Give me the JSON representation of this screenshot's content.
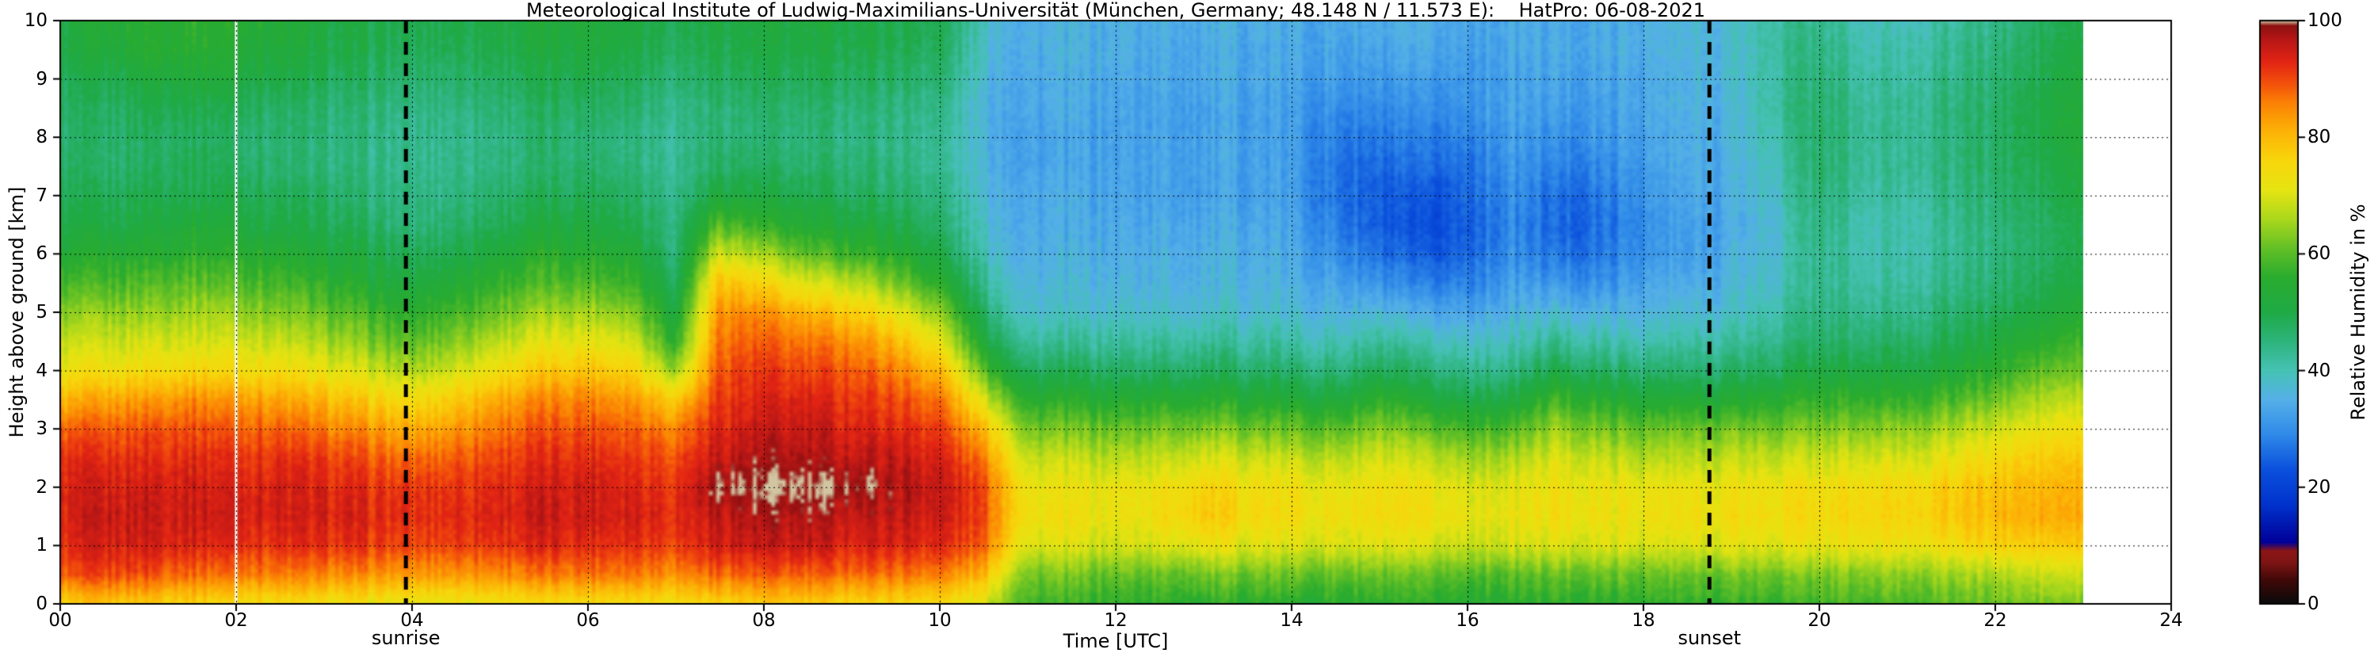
{
  "chart_data": {
    "type": "heatmap",
    "title": "Meteorological Institute of Ludwig-Maximilians-Universität (München, Germany; 48.148 N / 11.573 E):    HatPro: 06-08-2021",
    "xlabel": "Time [UTC]",
    "ylabel": "Height above ground [km]",
    "colorbar_label": "Relative Humidity in %",
    "x_range": [
      0,
      24
    ],
    "y_range": [
      0,
      10
    ],
    "c_range": [
      0,
      100
    ],
    "grid": "dashed-black-at-major-ticks",
    "x_ticks": {
      "values": [
        0,
        2,
        4,
        6,
        8,
        10,
        12,
        14,
        16,
        18,
        20,
        22,
        24
      ],
      "labels": [
        "00",
        "02",
        "04",
        "06",
        "08",
        "10",
        "12",
        "14",
        "16",
        "18",
        "20",
        "22",
        "24"
      ]
    },
    "y_ticks": {
      "values": [
        0,
        1,
        2,
        3,
        4,
        5,
        6,
        7,
        8,
        9,
        10
      ],
      "labels": [
        "0",
        "1",
        "2",
        "3",
        "4",
        "5",
        "6",
        "7",
        "8",
        "9",
        "10"
      ]
    },
    "colorbar_ticks": {
      "values": [
        0,
        20,
        40,
        60,
        80,
        100
      ],
      "labels": [
        "0",
        "20",
        "40",
        "60",
        "80",
        "100"
      ]
    },
    "annotations": {
      "sunrise": {
        "label": "sunrise",
        "time_utc": 3.93
      },
      "sunset": {
        "label": "sunset",
        "time_utc": 18.75
      }
    },
    "data_gap_times_utc": [
      2.0
    ],
    "data_time_extent_utc": [
      0,
      23
    ],
    "times_utc": [
      0,
      0.5,
      1,
      1.5,
      2,
      2.5,
      3,
      3.5,
      4,
      4.5,
      5,
      5.5,
      6,
      6.5,
      7,
      7.5,
      8,
      8.5,
      9,
      9.5,
      10,
      10.5,
      11,
      11.5,
      12,
      12.5,
      13,
      13.5,
      14,
      14.5,
      15,
      15.5,
      16,
      16.5,
      17,
      17.5,
      18,
      18.5,
      19,
      19.5,
      20,
      20.5,
      21,
      21.5,
      22,
      22.5,
      23
    ],
    "heights_km": [
      0,
      0.5,
      1,
      1.5,
      2,
      2.5,
      3,
      3.5,
      4,
      4.5,
      5,
      5.5,
      6,
      6.5,
      7,
      7.5,
      8,
      8.5,
      9,
      9.5,
      10
    ],
    "humidity_percent_by_time": [
      [
        75,
        88,
        92,
        93,
        93,
        92,
        88,
        80,
        72,
        68,
        63,
        58,
        53,
        50,
        48,
        47,
        46,
        47,
        48,
        50,
        50
      ],
      [
        78,
        90,
        94,
        95,
        94,
        92,
        88,
        82,
        73,
        68,
        64,
        58,
        54,
        50,
        48,
        46,
        46,
        47,
        49,
        52,
        53
      ],
      [
        78,
        90,
        95,
        96,
        95,
        93,
        90,
        84,
        75,
        70,
        65,
        60,
        55,
        52,
        50,
        48,
        48,
        50,
        52,
        55,
        55
      ],
      [
        76,
        88,
        94,
        95,
        95,
        93,
        90,
        85,
        76,
        70,
        66,
        61,
        56,
        53,
        50,
        49,
        48,
        50,
        53,
        55,
        56
      ],
      [
        75,
        87,
        93,
        95,
        94,
        92,
        89,
        84,
        75,
        70,
        65,
        60,
        56,
        52,
        50,
        48,
        47,
        49,
        52,
        54,
        55
      ],
      [
        74,
        86,
        92,
        94,
        94,
        92,
        88,
        82,
        74,
        68,
        63,
        58,
        54,
        50,
        48,
        46,
        46,
        47,
        50,
        52,
        53
      ],
      [
        73,
        85,
        92,
        94,
        93,
        91,
        86,
        80,
        72,
        66,
        61,
        56,
        52,
        49,
        47,
        45,
        45,
        46,
        48,
        50,
        51
      ],
      [
        72,
        84,
        91,
        93,
        92,
        89,
        84,
        77,
        69,
        63,
        58,
        53,
        50,
        47,
        45,
        44,
        44,
        45,
        47,
        49,
        50
      ],
      [
        71,
        83,
        90,
        92,
        91,
        87,
        81,
        74,
        66,
        60,
        55,
        51,
        48,
        45,
        44,
        43,
        43,
        44,
        46,
        48,
        49
      ],
      [
        72,
        84,
        91,
        93,
        92,
        89,
        84,
        78,
        70,
        64,
        59,
        54,
        50,
        47,
        45,
        44,
        44,
        45,
        47,
        49,
        50
      ],
      [
        73,
        85,
        92,
        94,
        93,
        91,
        87,
        82,
        74,
        68,
        62,
        57,
        53,
        49,
        47,
        45,
        45,
        46,
        48,
        50,
        51
      ],
      [
        74,
        86,
        93,
        95,
        94,
        92,
        89,
        85,
        78,
        71,
        65,
        59,
        55,
        51,
        48,
        46,
        46,
        47,
        49,
        51,
        52
      ],
      [
        75,
        87,
        93,
        95,
        95,
        93,
        90,
        86,
        79,
        72,
        66,
        60,
        55,
        52,
        49,
        47,
        46,
        48,
        50,
        52,
        53
      ],
      [
        75,
        87,
        93,
        95,
        94,
        92,
        89,
        84,
        77,
        70,
        64,
        58,
        54,
        50,
        48,
        46,
        45,
        47,
        49,
        51,
        52
      ],
      [
        74,
        85,
        91,
        93,
        92,
        90,
        86,
        78,
        65,
        56,
        52,
        48,
        46,
        45,
        44,
        43,
        43,
        44,
        46,
        48,
        49
      ],
      [
        76,
        88,
        95,
        96,
        100,
        96,
        94,
        92,
        90,
        88,
        85,
        80,
        70,
        60,
        52,
        48,
        46,
        46,
        48,
        50,
        51
      ],
      [
        77,
        88,
        95,
        97,
        100,
        97,
        95,
        93,
        91,
        88,
        84,
        75,
        65,
        56,
        50,
        47,
        45,
        46,
        48,
        50,
        51
      ],
      [
        77,
        88,
        95,
        97,
        100,
        97,
        95,
        93,
        90,
        86,
        80,
        70,
        60,
        53,
        49,
        46,
        45,
        46,
        48,
        50,
        51
      ],
      [
        76,
        88,
        94,
        96,
        100,
        96,
        94,
        92,
        89,
        85,
        78,
        68,
        58,
        52,
        48,
        46,
        45,
        46,
        48,
        50,
        51
      ],
      [
        76,
        87,
        94,
        96,
        97,
        96,
        93,
        90,
        86,
        80,
        72,
        63,
        55,
        50,
        47,
        45,
        44,
        45,
        47,
        49,
        50
      ],
      [
        75,
        86,
        93,
        95,
        96,
        94,
        91,
        87,
        80,
        72,
        64,
        56,
        50,
        47,
        45,
        43,
        43,
        44,
        46,
        48,
        49
      ],
      [
        70,
        80,
        88,
        90,
        90,
        86,
        80,
        70,
        60,
        52,
        47,
        43,
        40,
        38,
        37,
        36,
        36,
        36,
        37,
        38,
        39
      ],
      [
        58,
        62,
        70,
        73,
        72,
        68,
        62,
        55,
        48,
        42,
        38,
        36,
        35,
        34,
        34,
        33,
        33,
        34,
        34,
        35,
        35
      ],
      [
        57,
        62,
        70,
        73,
        72,
        68,
        62,
        55,
        48,
        42,
        38,
        36,
        35,
        34,
        34,
        33,
        33,
        34,
        34,
        35,
        35
      ],
      [
        56,
        61,
        69,
        72,
        72,
        67,
        61,
        54,
        47,
        42,
        38,
        36,
        35,
        34,
        33,
        33,
        33,
        33,
        34,
        35,
        35
      ],
      [
        56,
        61,
        70,
        74,
        73,
        68,
        62,
        55,
        47,
        42,
        38,
        36,
        35,
        34,
        33,
        33,
        33,
        33,
        34,
        34,
        35
      ],
      [
        56,
        62,
        72,
        78,
        76,
        70,
        63,
        55,
        48,
        42,
        38,
        36,
        35,
        34,
        33,
        33,
        33,
        33,
        34,
        34,
        35
      ],
      [
        56,
        62,
        71,
        75,
        74,
        69,
        62,
        54,
        47,
        42,
        38,
        36,
        35,
        34,
        33,
        33,
        33,
        33,
        34,
        34,
        35
      ],
      [
        55,
        61,
        70,
        74,
        73,
        68,
        61,
        53,
        46,
        41,
        37,
        35,
        34,
        33,
        32,
        32,
        32,
        32,
        33,
        34,
        34
      ],
      [
        55,
        61,
        70,
        73,
        72,
        67,
        60,
        52,
        45,
        40,
        36,
        33,
        30,
        28,
        27,
        27,
        28,
        30,
        32,
        33,
        34
      ],
      [
        55,
        61,
        70,
        74,
        73,
        69,
        63,
        56,
        48,
        42,
        36,
        30,
        26,
        24,
        24,
        25,
        27,
        29,
        31,
        33,
        34
      ],
      [
        55,
        60,
        69,
        73,
        72,
        67,
        60,
        52,
        45,
        39,
        33,
        27,
        23,
        21,
        22,
        25,
        27,
        29,
        31,
        33,
        34
      ],
      [
        55,
        60,
        69,
        72,
        71,
        66,
        59,
        51,
        44,
        39,
        34,
        29,
        26,
        25,
        26,
        27,
        29,
        31,
        32,
        33,
        34
      ],
      [
        55,
        60,
        69,
        72,
        71,
        66,
        59,
        51,
        44,
        39,
        35,
        32,
        30,
        29,
        30,
        31,
        32,
        33,
        33,
        34,
        34
      ],
      [
        56,
        61,
        70,
        74,
        73,
        70,
        65,
        58,
        50,
        43,
        37,
        31,
        27,
        25,
        26,
        28,
        30,
        32,
        33,
        34,
        34
      ],
      [
        56,
        61,
        70,
        73,
        72,
        68,
        62,
        55,
        47,
        41,
        35,
        30,
        27,
        26,
        27,
        29,
        31,
        32,
        33,
        34,
        34
      ],
      [
        56,
        61,
        70,
        73,
        72,
        67,
        61,
        53,
        46,
        40,
        36,
        33,
        31,
        30,
        31,
        32,
        33,
        34,
        34,
        35,
        35
      ],
      [
        56,
        61,
        70,
        73,
        72,
        67,
        61,
        53,
        46,
        41,
        37,
        34,
        32,
        32,
        33,
        34,
        34,
        35,
        35,
        36,
        36
      ],
      [
        57,
        62,
        71,
        74,
        73,
        68,
        62,
        54,
        47,
        42,
        38,
        36,
        35,
        34,
        35,
        35,
        36,
        36,
        37,
        37,
        38
      ],
      [
        57,
        62,
        71,
        74,
        73,
        68,
        62,
        55,
        48,
        44,
        41,
        39,
        38,
        38,
        39,
        40,
        41,
        42,
        42,
        42,
        42
      ],
      [
        58,
        63,
        72,
        75,
        74,
        69,
        63,
        57,
        51,
        47,
        45,
        44,
        44,
        45,
        46,
        47,
        47,
        47,
        46,
        45,
        44
      ],
      [
        58,
        63,
        72,
        75,
        74,
        69,
        63,
        56,
        50,
        46,
        43,
        41,
        40,
        40,
        41,
        42,
        42,
        42,
        41,
        40,
        39
      ],
      [
        59,
        64,
        73,
        76,
        75,
        70,
        64,
        57,
        51,
        47,
        44,
        42,
        41,
        41,
        42,
        43,
        43,
        43,
        42,
        41,
        40
      ],
      [
        60,
        65,
        74,
        78,
        77,
        72,
        66,
        59,
        53,
        49,
        46,
        44,
        43,
        43,
        44,
        45,
        45,
        45,
        44,
        43,
        42
      ],
      [
        61,
        66,
        76,
        80,
        79,
        75,
        69,
        62,
        56,
        52,
        48,
        46,
        45,
        45,
        46,
        47,
        47,
        47,
        46,
        45,
        44
      ],
      [
        62,
        68,
        77,
        81,
        80,
        77,
        72,
        66,
        60,
        55,
        51,
        48,
        47,
        47,
        48,
        49,
        50,
        50,
        49,
        48,
        47
      ],
      [
        63,
        69,
        78,
        82,
        81,
        78,
        74,
        68,
        62,
        58,
        54,
        51,
        50,
        50,
        51,
        52,
        53,
        53,
        52,
        51,
        50
      ]
    ],
    "colormap_stops": [
      {
        "v": 0,
        "c": "#0a0a0a"
      },
      {
        "v": 4,
        "c": "#400808"
      },
      {
        "v": 7,
        "c": "#7e1414"
      },
      {
        "v": 9,
        "c": "#8c1616"
      },
      {
        "v": 10.5,
        "c": "#000099"
      },
      {
        "v": 17,
        "c": "#0033cc"
      },
      {
        "v": 23,
        "c": "#0b50dc"
      },
      {
        "v": 29,
        "c": "#2f8ae8"
      },
      {
        "v": 35,
        "c": "#55b0e8"
      },
      {
        "v": 40,
        "c": "#46c2b4"
      },
      {
        "v": 45,
        "c": "#2db47c"
      },
      {
        "v": 50,
        "c": "#1faa46"
      },
      {
        "v": 56,
        "c": "#2aac2e"
      },
      {
        "v": 61,
        "c": "#63c026"
      },
      {
        "v": 66,
        "c": "#abd81c"
      },
      {
        "v": 71,
        "c": "#e6e412"
      },
      {
        "v": 76,
        "c": "#f8d60c"
      },
      {
        "v": 81,
        "c": "#fcb306"
      },
      {
        "v": 86,
        "c": "#fb8104"
      },
      {
        "v": 89,
        "c": "#f4540b"
      },
      {
        "v": 93,
        "c": "#e22414"
      },
      {
        "v": 97,
        "c": "#b41616"
      },
      {
        "v": 99.2,
        "c": "#8c1010"
      },
      {
        "v": 100,
        "c": "#d2c6a2"
      }
    ]
  }
}
